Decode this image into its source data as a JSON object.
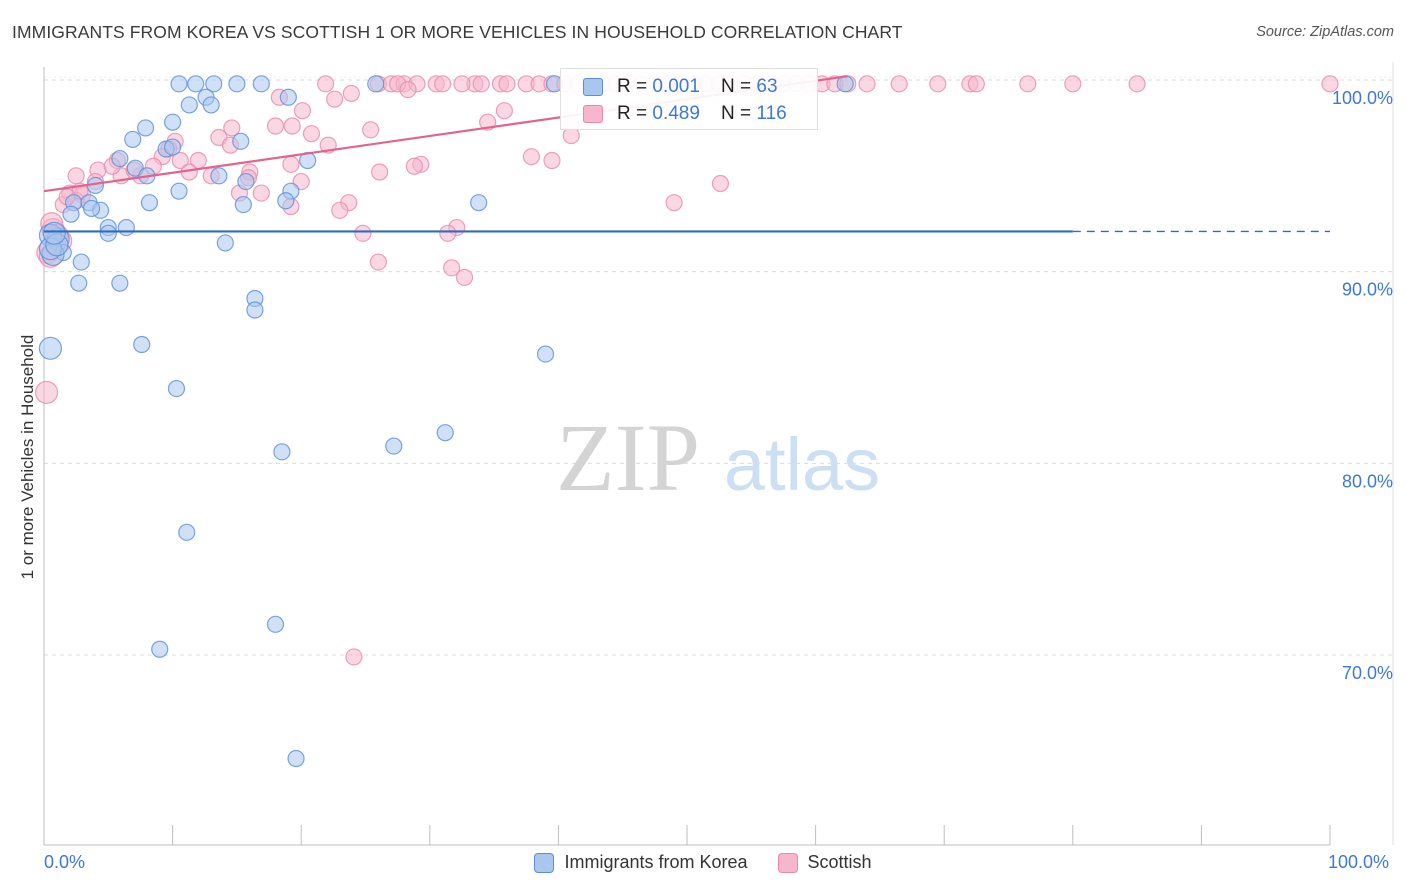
{
  "title": "IMMIGRANTS FROM KOREA VS SCOTTISH 1 OR MORE VEHICLES IN HOUSEHOLD CORRELATION CHART",
  "source": "Source: ZipAtlas.com",
  "watermark": {
    "zip": "ZIP",
    "atlas": "atlas"
  },
  "colors": {
    "korea_fill": "#a9c6ef",
    "korea_stroke": "#5b8ed8",
    "korea_line": "#2f6bc6",
    "scottish_fill": "#f6b6cc",
    "scottish_stroke": "#e98aab",
    "scottish_line": "#e0648f",
    "tick_label": "#3d78d8"
  },
  "stats": {
    "korea": {
      "r_label": "R = ",
      "r_value": "0.001",
      "n_label": "N = ",
      "n_value": "63"
    },
    "scottish": {
      "r_label": "R = ",
      "r_value": "0.489",
      "n_label": "N = ",
      "n_value": "116"
    }
  },
  "legend": [
    {
      "name": "Immigrants from Korea"
    },
    {
      "name": "Scottish"
    }
  ],
  "chart_data": {
    "type": "scatter",
    "title": "IMMIGRANTS FROM KOREA VS SCOTTISH 1 OR MORE VEHICLES IN HOUSEHOLD CORRELATION CHART",
    "xlabel": "",
    "ylabel": "1 or more Vehicles in Household",
    "xlim": [
      0,
      100
    ],
    "ylim": [
      60,
      104
    ],
    "x_tick_labels": [
      "0.0%",
      "100.0%"
    ],
    "y_ticks": [
      70,
      80,
      90,
      100
    ],
    "y_tick_labels": [
      "70.0%",
      "80.0%",
      "90.0%",
      "100.0%"
    ],
    "grid": true,
    "legend_position": "bottom",
    "series": [
      {
        "name": "Immigrants from Korea",
        "r": 0.001,
        "n": 63,
        "trend": {
          "x": [
            0,
            80
          ],
          "y": [
            92.1,
            92.1
          ],
          "dashed_to": 100
        },
        "points": [
          [
            10.5,
            99.8
          ],
          [
            11.8,
            99.8
          ],
          [
            13.2,
            99.8
          ],
          [
            15,
            99.8
          ],
          [
            16.9,
            99.8
          ],
          [
            25.8,
            99.8
          ],
          [
            39.7,
            99.8
          ],
          [
            62.3,
            99.8
          ],
          [
            11.3,
            98.7
          ],
          [
            12.6,
            99.1
          ],
          [
            13,
            98.7
          ],
          [
            19,
            99.1
          ],
          [
            7.9,
            97.5
          ],
          [
            10,
            97.8
          ],
          [
            6.9,
            96.9
          ],
          [
            15.3,
            96.8
          ],
          [
            9.5,
            96.4
          ],
          [
            5.9,
            95.9
          ],
          [
            10,
            96.5
          ],
          [
            20.5,
            95.8
          ],
          [
            7.1,
            95.4
          ],
          [
            8,
            95
          ],
          [
            13.6,
            95
          ],
          [
            15.7,
            94.7
          ],
          [
            4,
            94.5
          ],
          [
            10.5,
            94.2
          ],
          [
            19.2,
            94.2
          ],
          [
            8.2,
            93.6
          ],
          [
            15.5,
            93.5
          ],
          [
            18.8,
            93.7
          ],
          [
            33.8,
            93.6
          ],
          [
            2.3,
            93.6
          ],
          [
            3.5,
            93.6
          ],
          [
            4.4,
            93.2
          ],
          [
            3.7,
            93.3
          ],
          [
            2.1,
            93
          ],
          [
            5,
            92.3
          ],
          [
            6.4,
            92.3
          ],
          [
            5,
            92
          ],
          [
            1.1,
            91.7
          ],
          [
            14.1,
            91.5
          ],
          [
            0.5,
            91.9
          ],
          [
            1.5,
            91
          ],
          [
            0.7,
            90.9
          ],
          [
            2.9,
            90.5
          ],
          [
            2.7,
            89.4
          ],
          [
            5.9,
            89.4
          ],
          [
            16.4,
            88.6
          ],
          [
            16.4,
            88
          ],
          [
            0.5,
            86
          ],
          [
            7.6,
            86.2
          ],
          [
            39,
            85.7
          ],
          [
            10.3,
            83.9
          ],
          [
            31.2,
            81.6
          ],
          [
            27.2,
            80.9
          ],
          [
            18.5,
            80.6
          ],
          [
            11.1,
            76.4
          ],
          [
            18,
            71.6
          ],
          [
            9,
            70.3
          ],
          [
            19.6,
            64.6
          ],
          [
            0.5,
            91.2
          ],
          [
            1,
            91.4
          ],
          [
            0.8,
            92
          ]
        ]
      },
      {
        "name": "Scottish",
        "r": 0.489,
        "n": 116,
        "trend": {
          "x": [
            0,
            62.5
          ],
          "y": [
            94.2,
            100.2
          ]
        },
        "points": [
          [
            21.9,
            99.8
          ],
          [
            26,
            99.8
          ],
          [
            27,
            99.8
          ],
          [
            28,
            99.8
          ],
          [
            29,
            99.8
          ],
          [
            27.5,
            99.8
          ],
          [
            30.5,
            99.8
          ],
          [
            33.5,
            99.8
          ],
          [
            34,
            99.8
          ],
          [
            35.5,
            99.8
          ],
          [
            36,
            99.8
          ],
          [
            37.5,
            99.8
          ],
          [
            38.5,
            99.8
          ],
          [
            39.5,
            99.8
          ],
          [
            40.5,
            99.8
          ],
          [
            41.5,
            99.8
          ],
          [
            42.5,
            99.8
          ],
          [
            43.5,
            99.8
          ],
          [
            44.5,
            99.8
          ],
          [
            45.5,
            99.8
          ],
          [
            46.5,
            99.8
          ],
          [
            47.5,
            99.8
          ],
          [
            48.5,
            99.8
          ],
          [
            49.5,
            99.8
          ],
          [
            50.5,
            99.8
          ],
          [
            51.5,
            99.8
          ],
          [
            52.5,
            99.8
          ],
          [
            53.5,
            99.8
          ],
          [
            54.5,
            99.8
          ],
          [
            55.5,
            99.8
          ],
          [
            56.5,
            99.8
          ],
          [
            57.5,
            99.8
          ],
          [
            58.5,
            99.8
          ],
          [
            59.5,
            99.8
          ],
          [
            60.5,
            99.8
          ],
          [
            61.5,
            99.8
          ],
          [
            62.5,
            99.8
          ],
          [
            64,
            99.8
          ],
          [
            66.5,
            99.8
          ],
          [
            69.5,
            99.8
          ],
          [
            72,
            99.8
          ],
          [
            72.5,
            99.8
          ],
          [
            76.5,
            99.8
          ],
          [
            80,
            99.8
          ],
          [
            85,
            99.8
          ],
          [
            100,
            99.8
          ],
          [
            31,
            99.8
          ],
          [
            32.5,
            99.8
          ],
          [
            23.9,
            99.3
          ],
          [
            28.3,
            99.5
          ],
          [
            18.3,
            99.1
          ],
          [
            22.6,
            99
          ],
          [
            20.1,
            98.4
          ],
          [
            34.5,
            97.8
          ],
          [
            18,
            97.6
          ],
          [
            19.3,
            97.6
          ],
          [
            14.6,
            97.5
          ],
          [
            25.4,
            97.4
          ],
          [
            20.8,
            97.2
          ],
          [
            13.6,
            97
          ],
          [
            41,
            97.1
          ],
          [
            10.2,
            96.8
          ],
          [
            14.5,
            96.6
          ],
          [
            22.1,
            96.6
          ],
          [
            9.7,
            96.4
          ],
          [
            5.7,
            95.8
          ],
          [
            9.2,
            96
          ],
          [
            10.6,
            95.8
          ],
          [
            12,
            95.8
          ],
          [
            37.9,
            96
          ],
          [
            29.3,
            95.6
          ],
          [
            28.8,
            95.5
          ],
          [
            4.2,
            95.3
          ],
          [
            8.5,
            95.5
          ],
          [
            11.3,
            95.2
          ],
          [
            16,
            95.2
          ],
          [
            19.2,
            95.6
          ],
          [
            2.5,
            95
          ],
          [
            6,
            95
          ],
          [
            7.5,
            95
          ],
          [
            13,
            95
          ],
          [
            15.9,
            94.9
          ],
          [
            26.1,
            95.2
          ],
          [
            20,
            94.7
          ],
          [
            52.6,
            94.6
          ],
          [
            2,
            94.1
          ],
          [
            3,
            94
          ],
          [
            15.2,
            94.1
          ],
          [
            16.9,
            94.1
          ],
          [
            4,
            94.7
          ],
          [
            23.7,
            93.6
          ],
          [
            19.2,
            93.4
          ],
          [
            23,
            93.2
          ],
          [
            49,
            93.6
          ],
          [
            1.5,
            93.5
          ],
          [
            2.5,
            93.7
          ],
          [
            32.1,
            92.3
          ],
          [
            31.4,
            92
          ],
          [
            24.8,
            92
          ],
          [
            0.7,
            92.2
          ],
          [
            1.3,
            91.6
          ],
          [
            26,
            90.5
          ],
          [
            31.7,
            90.2
          ],
          [
            32.7,
            89.7
          ],
          [
            0.3,
            91
          ],
          [
            0.5,
            90.8
          ],
          [
            24.1,
            69.9
          ],
          [
            0.2,
            83.7
          ],
          [
            2.8,
            94.2
          ],
          [
            1.8,
            93.9
          ],
          [
            5.3,
            95.5
          ],
          [
            7,
            95.3
          ],
          [
            0.6,
            92.5
          ],
          [
            1,
            91.9
          ],
          [
            39.5,
            95.8
          ],
          [
            35.8,
            98.4
          ]
        ]
      }
    ]
  }
}
